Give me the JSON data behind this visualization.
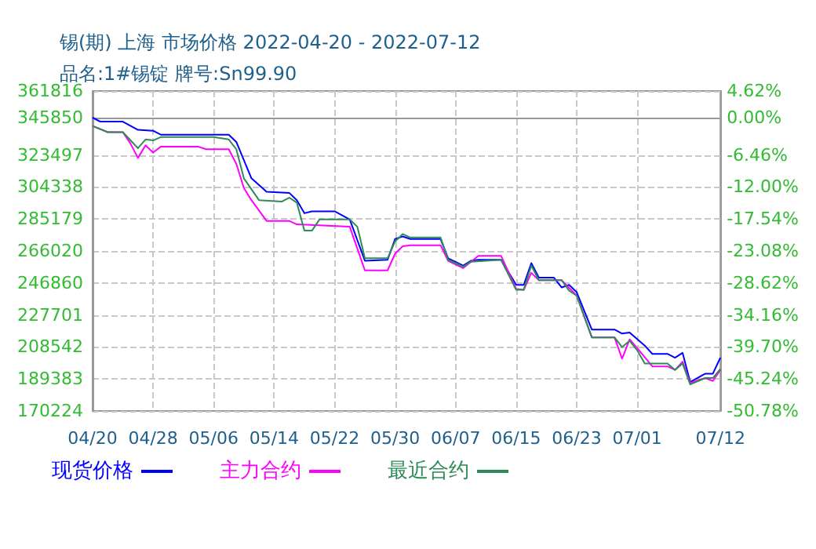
{
  "chart_data": {
    "type": "line",
    "title": "锡(期) 上海 市场价格 2022-04-20 - 2022-07-12",
    "subtitle": "品名:1#锡锭 牌号:Sn99.90",
    "xlim": [
      "2022-04-20",
      "2022-07-12"
    ],
    "xticks": [
      {
        "value": "2022-04-20",
        "label": "04/20"
      },
      {
        "value": "2022-04-28",
        "label": "04/28"
      },
      {
        "value": "2022-05-06",
        "label": "05/06"
      },
      {
        "value": "2022-05-14",
        "label": "05/14"
      },
      {
        "value": "2022-05-22",
        "label": "05/22"
      },
      {
        "value": "2022-05-30",
        "label": "05/30"
      },
      {
        "value": "2022-06-07",
        "label": "06/07"
      },
      {
        "value": "2022-06-15",
        "label": "06/15"
      },
      {
        "value": "2022-06-23",
        "label": "06/23"
      },
      {
        "value": "2022-07-01",
        "label": "07/01"
      },
      {
        "value": "2022-07-12",
        "label": "07/12"
      }
    ],
    "ylim": [
      170224,
      361816
    ],
    "yticks": [
      170224,
      189383,
      208542,
      227701,
      246860,
      266020,
      285179,
      304338,
      323497,
      345850,
      361816
    ],
    "y2lim": [
      -50.78,
      4.62
    ],
    "y2ticks": [
      {
        "value": -50.78,
        "label": "-50.78%"
      },
      {
        "value": -45.24,
        "label": "-45.24%"
      },
      {
        "value": -39.7,
        "label": "-39.70%"
      },
      {
        "value": -34.16,
        "label": "-34.16%"
      },
      {
        "value": -28.62,
        "label": "-28.62%"
      },
      {
        "value": -23.08,
        "label": "-23.08%"
      },
      {
        "value": -17.54,
        "label": "-17.54%"
      },
      {
        "value": -12,
        "label": "-12.00%"
      },
      {
        "value": -6.46,
        "label": "-6.46%"
      },
      {
        "value": 0,
        "label": "0.00%"
      },
      {
        "value": 4.62,
        "label": "4.62%"
      }
    ],
    "grid": true,
    "legend": "bottom",
    "marker": "none",
    "line_style": "solid",
    "series": [
      {
        "name": "现货价格",
        "color": "#0000ff",
        "x": [
          "2022-04-20",
          "2022-04-21",
          "2022-04-24",
          "2022-04-26",
          "2022-04-28",
          "2022-04-29",
          "2022-05-08",
          "2022-05-09",
          "2022-05-11",
          "2022-05-13",
          "2022-05-16",
          "2022-05-17",
          "2022-05-18",
          "2022-05-19",
          "2022-05-22",
          "2022-05-24",
          "2022-05-26",
          "2022-05-29",
          "2022-05-30",
          "2022-05-31",
          "2022-06-01",
          "2022-06-05",
          "2022-06-06",
          "2022-06-08",
          "2022-06-09",
          "2022-06-10",
          "2022-06-13",
          "2022-06-15",
          "2022-06-16",
          "2022-06-17",
          "2022-06-18",
          "2022-06-20",
          "2022-06-21",
          "2022-06-22",
          "2022-06-23",
          "2022-06-25",
          "2022-06-28",
          "2022-06-29",
          "2022-06-30",
          "2022-07-02",
          "2022-07-03",
          "2022-07-05",
          "2022-07-06",
          "2022-07-07",
          "2022-07-08",
          "2022-07-10",
          "2022-07-11",
          "2022-07-12"
        ],
        "values": [
          345850,
          343500,
          343500,
          338530,
          338010,
          335660,
          335660,
          331300,
          309530,
          301430,
          300820,
          296460,
          288620,
          289760,
          289760,
          284880,
          260140,
          260750,
          273210,
          274690,
          273210,
          273210,
          261630,
          257280,
          260140,
          260750,
          260750,
          245680,
          245680,
          258750,
          250040,
          250040,
          244200,
          245680,
          241330,
          218950,
          218950,
          216590,
          217200,
          209360,
          204400,
          204400,
          202140,
          205010,
          187590,
          192560,
          192560,
          202140
        ]
      },
      {
        "name": "主力合约",
        "color": "#ff00ff",
        "x": [
          "2022-04-20",
          "2022-04-22",
          "2022-04-24",
          "2022-04-25",
          "2022-04-26",
          "2022-04-27",
          "2022-04-28",
          "2022-04-29",
          "2022-05-04",
          "2022-05-05",
          "2022-05-08",
          "2022-05-09",
          "2022-05-10",
          "2022-05-11",
          "2022-05-13",
          "2022-05-16",
          "2022-05-17",
          "2022-05-24",
          "2022-05-26",
          "2022-05-29",
          "2022-05-30",
          "2022-05-31",
          "2022-06-01",
          "2022-06-05",
          "2022-06-06",
          "2022-06-08",
          "2022-06-10",
          "2022-06-13",
          "2022-06-15",
          "2022-06-16",
          "2022-06-17",
          "2022-06-18",
          "2022-06-21",
          "2022-06-23",
          "2022-06-25",
          "2022-06-28",
          "2022-06-29",
          "2022-06-30",
          "2022-07-01",
          "2022-07-03",
          "2022-07-05",
          "2022-07-06",
          "2022-07-07",
          "2022-07-08",
          "2022-07-10",
          "2022-07-11",
          "2022-07-12"
        ],
        "values": [
          340880,
          337140,
          337140,
          330430,
          321720,
          329300,
          324950,
          328430,
          328430,
          326950,
          326950,
          318240,
          303690,
          296460,
          284010,
          284010,
          281940,
          280530,
          254400,
          254400,
          264500,
          268850,
          269460,
          269460,
          260140,
          255790,
          263110,
          263110,
          243330,
          242720,
          252920,
          248560,
          248560,
          239240,
          214300,
          214300,
          201530,
          213110,
          207890,
          196910,
          196910,
          194820,
          199780,
          187000,
          189940,
          188200,
          194820
        ]
      },
      {
        "name": "最近合约",
        "color": "#2e8b57",
        "x": [
          "2022-04-20",
          "2022-04-22",
          "2022-04-24",
          "2022-04-26",
          "2022-04-27",
          "2022-04-28",
          "2022-04-29",
          "2022-05-06",
          "2022-05-08",
          "2022-05-09",
          "2022-05-10",
          "2022-05-12",
          "2022-05-15",
          "2022-05-16",
          "2022-05-17",
          "2022-05-18",
          "2022-05-19",
          "2022-05-20",
          "2022-05-24",
          "2022-05-25",
          "2022-05-26",
          "2022-05-29",
          "2022-05-30",
          "2022-05-31",
          "2022-06-01",
          "2022-06-05",
          "2022-06-06",
          "2022-06-08",
          "2022-06-09",
          "2022-06-13",
          "2022-06-15",
          "2022-06-16",
          "2022-06-17",
          "2022-06-18",
          "2022-06-21",
          "2022-06-22",
          "2022-06-23",
          "2022-06-25",
          "2022-06-28",
          "2022-06-29",
          "2022-06-30",
          "2022-07-01",
          "2022-07-02",
          "2022-07-05",
          "2022-07-06",
          "2022-07-07",
          "2022-07-08",
          "2022-07-10",
          "2022-07-11",
          "2022-07-12"
        ],
        "values": [
          340880,
          337140,
          337140,
          327560,
          332790,
          332180,
          334180,
          334180,
          332790,
          326950,
          309530,
          296460,
          295590,
          297940,
          295000,
          278180,
          278180,
          284880,
          284880,
          280530,
          261630,
          261630,
          271810,
          276170,
          274080,
          274080,
          260750,
          256640,
          259620,
          260750,
          242720,
          242720,
          257280,
          248560,
          248560,
          242190,
          239240,
          214300,
          214300,
          208490,
          212240,
          206500,
          198670,
          198670,
          194820,
          198670,
          186110,
          189940,
          189940,
          195420
        ]
      }
    ]
  }
}
